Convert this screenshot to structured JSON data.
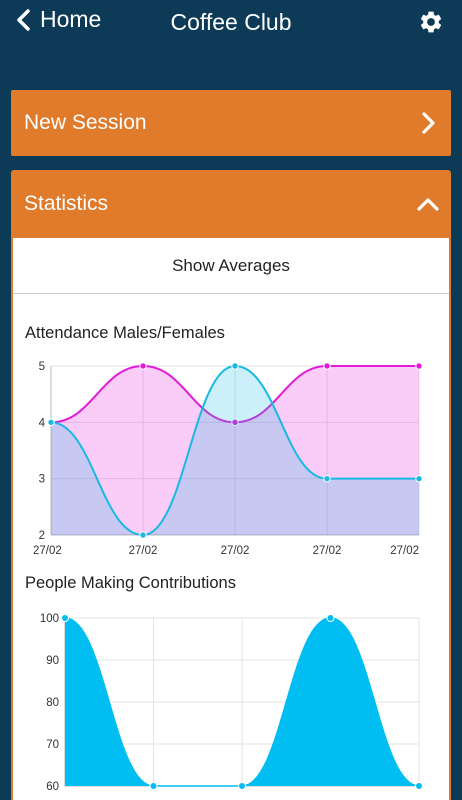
{
  "header": {
    "back_label": "Home",
    "title": "Coffee Club"
  },
  "new_session": {
    "label": "New Session"
  },
  "statistics": {
    "label": "Statistics",
    "show_averages": "Show Averages"
  },
  "colors": {
    "accent": "#e07b2c",
    "background": "#0d3a57",
    "males": "#19b9e4",
    "females": "#e21bd9"
  },
  "chart_data": [
    {
      "type": "area",
      "title": "Attendance Males/Females",
      "x": [
        "27/02",
        "27/02",
        "27/02",
        "27/02",
        "27/02"
      ],
      "ylim": [
        2,
        5
      ],
      "yticks": [
        2,
        3,
        4,
        5
      ],
      "series": [
        {
          "values": [
            4,
            5,
            4,
            5,
            5
          ],
          "color": "#e21bd9"
        },
        {
          "values": [
            4,
            2,
            5,
            3,
            3
          ],
          "color": "#19b9e4"
        }
      ],
      "grid": true
    },
    {
      "type": "area",
      "title": "People Making Contributions",
      "x": [
        "",
        "",
        "",
        "",
        ""
      ],
      "ylim": [
        60,
        100
      ],
      "yticks": [
        60,
        70,
        80,
        90,
        100
      ],
      "series": [
        {
          "values": [
            100,
            60,
            60,
            100,
            60
          ],
          "color": "#00bdf2"
        }
      ],
      "grid": true
    }
  ]
}
